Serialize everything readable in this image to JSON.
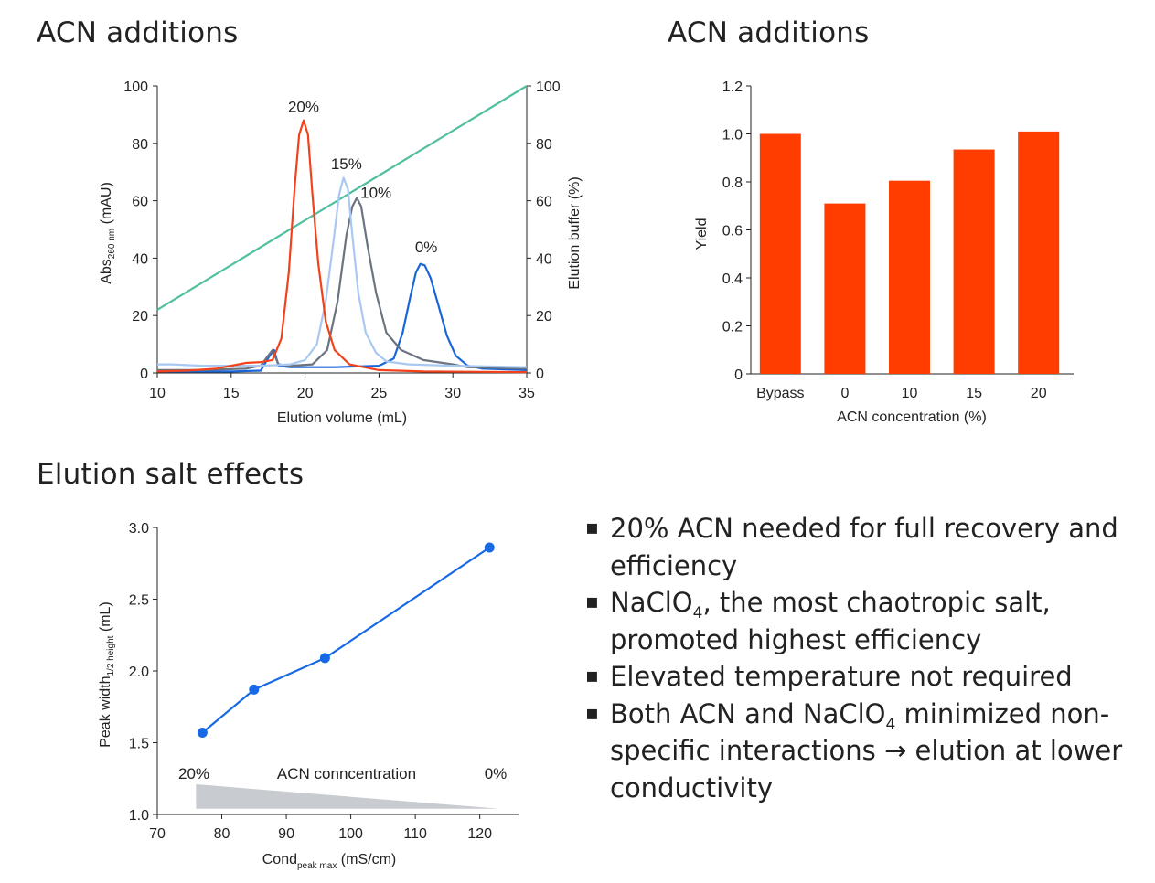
{
  "titles": {
    "left_top": "ACN additions",
    "right_top": "ACN additions",
    "bottom_left": "Elution salt effects"
  },
  "colors": {
    "red": "#f2421c",
    "light_blue": "#a9c8f2",
    "gray": "#6b7380",
    "blue": "#1a66d9",
    "gradient": "#4fbf9f",
    "bar": "#ff3d00",
    "salt_line": "#1769e6",
    "wedge": "#c8ccd0"
  },
  "chart_data": [
    {
      "type": "line",
      "xlabel": "Elution volume (mL)",
      "ylabel_main": "Abs",
      "ylabel_sub": "260 nm",
      "ylabel_unit": " (mAU)",
      "y2label": "Elution buffer (%)",
      "xlim": [
        10,
        35
      ],
      "ylim": [
        0,
        100
      ],
      "y2lim": [
        0,
        100
      ],
      "xticks": [
        "10",
        "15",
        "20",
        "25",
        "30",
        "35"
      ],
      "yticks": [
        "0",
        "20",
        "40",
        "60",
        "80",
        "100"
      ],
      "y2ticks": [
        "0",
        "20",
        "40",
        "60",
        "80",
        "100"
      ],
      "series": [
        {
          "name": "20%",
          "label": "20%",
          "label_at": [
            19.9,
            91
          ],
          "x": [
            10,
            12,
            14,
            15,
            16,
            17,
            17.8,
            18.4,
            18.9,
            19.3,
            19.6,
            19.9,
            20.2,
            20.5,
            20.9,
            21.4,
            22,
            23,
            25,
            28,
            35
          ],
          "y": [
            0.5,
            0.8,
            1.5,
            2.5,
            3.5,
            3.8,
            4.5,
            12,
            35,
            65,
            83,
            88,
            83,
            62,
            38,
            18,
            8,
            3,
            1,
            0.5,
            0.3
          ]
        },
        {
          "name": "15%",
          "label": "15%",
          "label_at": [
            22.8,
            71
          ],
          "x": [
            10,
            11,
            13,
            15,
            17,
            18,
            19,
            20,
            20.8,
            21.4,
            21.9,
            22.3,
            22.6,
            22.9,
            23.2,
            23.6,
            24.1,
            24.8,
            25.5,
            27,
            30,
            35
          ],
          "y": [
            3,
            3,
            2.5,
            2.5,
            2.5,
            2.7,
            3,
            4.5,
            10,
            25,
            45,
            62,
            68,
            64,
            48,
            28,
            14,
            7,
            4,
            3,
            2.5,
            2
          ]
        },
        {
          "name": "10%",
          "label": "10%",
          "label_at": [
            24.8,
            61
          ],
          "x": [
            10,
            13,
            16,
            17,
            17.5,
            17.8,
            18.2,
            19,
            20.5,
            21.5,
            22.2,
            22.8,
            23.2,
            23.5,
            23.8,
            24.2,
            24.8,
            25.5,
            26.5,
            28,
            30,
            31,
            35
          ],
          "y": [
            1,
            1,
            1.5,
            2.5,
            6,
            8,
            3,
            2.5,
            3,
            8,
            25,
            48,
            58,
            61,
            58,
            45,
            28,
            14,
            8,
            4.5,
            3,
            2,
            1.5
          ]
        },
        {
          "name": "0%",
          "label": "0%",
          "label_at": [
            28.2,
            42
          ],
          "x": [
            10,
            15,
            17,
            17.6,
            17.9,
            18.2,
            19,
            22,
            25,
            26,
            26.6,
            27.1,
            27.5,
            27.8,
            28.1,
            28.5,
            29,
            29.6,
            30.2,
            31,
            32,
            35
          ],
          "y": [
            0.5,
            0.5,
            0.8,
            6,
            8,
            2.5,
            2,
            2,
            2.5,
            5,
            14,
            26,
            35,
            38,
            37.5,
            33,
            24,
            13,
            6,
            2.5,
            1.5,
            1
          ]
        }
      ],
      "gradient": {
        "name": "Elution buffer",
        "x": [
          10,
          35
        ],
        "y2": [
          22,
          100
        ]
      }
    },
    {
      "type": "bar",
      "categories": [
        "Bypass",
        "0",
        "10",
        "15",
        "20"
      ],
      "values": [
        1.0,
        0.71,
        0.805,
        0.935,
        1.01
      ],
      "ylabel": "Yield",
      "xlabel": "ACN concentration (%)",
      "ylim": [
        0,
        1.2
      ],
      "yticks": [
        "0",
        "0.2",
        "0.4",
        "0.6",
        "0.8",
        "1.0",
        "1.2"
      ]
    },
    {
      "type": "line",
      "x": [
        77,
        85,
        96,
        121.5
      ],
      "y": [
        1.57,
        1.87,
        2.09,
        2.86
      ],
      "xlabel_main": "Cond",
      "xlabel_sub": "peak max",
      "xlabel_unit": " (mS/cm)",
      "ylabel_main": "Peak width",
      "ylabel_sub": "1/2 height",
      "ylabel_unit": " (mL)",
      "xlim": [
        70,
        126
      ],
      "ylim": [
        1.0,
        3.0
      ],
      "xticks": [
        "70",
        "80",
        "90",
        "100",
        "110",
        "120"
      ],
      "yticks": [
        "1.0",
        "1.5",
        "2.0",
        "2.5",
        "3.0"
      ],
      "annotation": {
        "left": "20%",
        "center": "ACN conncentration",
        "right": "0%"
      }
    }
  ],
  "bullets": [
    {
      "mark": "▪",
      "parts": [
        {
          "t": "20% ACN needed for full recovery and efficiency"
        }
      ]
    },
    {
      "mark": "▪",
      "parts": [
        {
          "t": "NaClO"
        },
        {
          "t": "4",
          "sub": true
        },
        {
          "t": ", the most chaotropic salt, promoted highest efficiency"
        }
      ]
    },
    {
      "mark": "▪",
      "parts": [
        {
          "t": "Elevated temperature not required"
        }
      ]
    },
    {
      "mark": "▪",
      "parts": [
        {
          "t": "Both ACN and NaClO"
        },
        {
          "t": "4",
          "sub": true
        },
        {
          "t": " minimized non-specific interactions → elution at lower conductivity"
        }
      ]
    }
  ]
}
